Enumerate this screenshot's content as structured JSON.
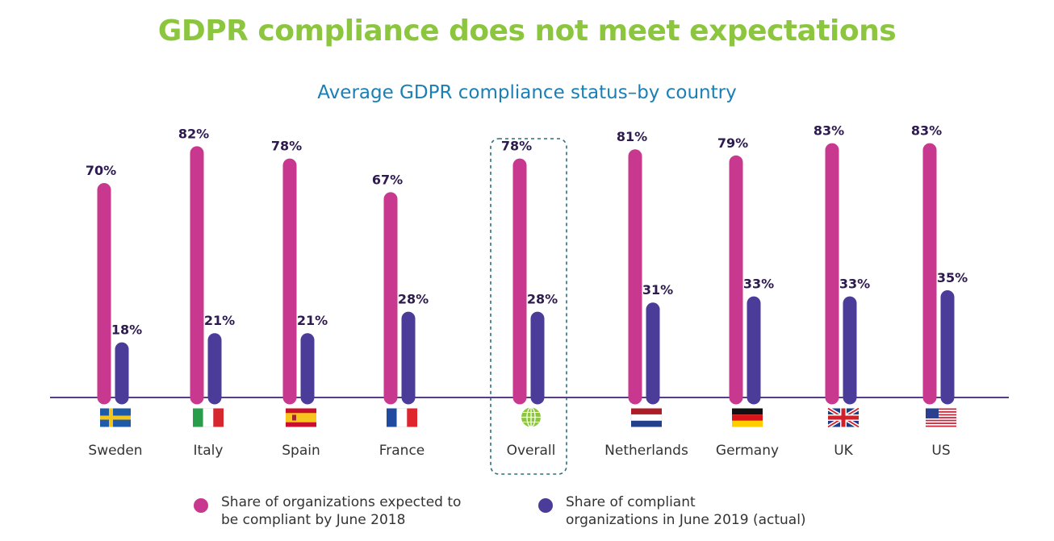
{
  "title": "GDPR compliance does not meet expectations",
  "subtitle": "Average GDPR compliance status–by country",
  "colors": {
    "title": "#8cc63f",
    "subtitle": "#1a7fb5",
    "expected": "#c8388f",
    "actual": "#4a3c98",
    "baseline": "#5b3a8a",
    "highlight_box": "#2c6f80",
    "globe": "#8cc63f"
  },
  "chart_data": {
    "type": "bar",
    "title": "Average GDPR compliance status–by country",
    "categories": [
      "Sweden",
      "Italy",
      "Spain",
      "France",
      "Overall",
      "Netherlands",
      "Germany",
      "UK",
      "US"
    ],
    "highlighted_category": "Overall",
    "series": [
      {
        "name": "Share of organizations expected to be compliant by June 2018",
        "values": [
          70,
          82,
          78,
          67,
          78,
          81,
          79,
          83,
          83
        ],
        "labels": [
          "70%",
          "82%",
          "78%",
          "67%",
          "78%",
          "81%",
          "79%",
          "83%",
          "83%"
        ]
      },
      {
        "name": "Share of compliant organizations in June 2019 (actual)",
        "values": [
          18,
          21,
          21,
          28,
          28,
          31,
          33,
          33,
          35
        ],
        "labels": [
          "18%",
          "21%",
          "21%",
          "28%",
          "28%",
          "31%",
          "33%",
          "33%",
          "35%"
        ]
      }
    ],
    "ylim": [
      0,
      100
    ],
    "grid": false,
    "legend_position": "bottom"
  },
  "flags": [
    "sweden-flag-icon",
    "italy-flag-icon",
    "spain-flag-icon",
    "france-flag-icon",
    "globe-icon",
    "netherlands-flag-icon",
    "germany-flag-icon",
    "uk-flag-icon",
    "us-flag-icon"
  ],
  "legend": {
    "expected_line1": "Share of organizations expected to",
    "expected_line2": "be compliant by June 2018",
    "actual_line1": "Share of compliant",
    "actual_line2": "organizations in June 2019 (actual)"
  }
}
